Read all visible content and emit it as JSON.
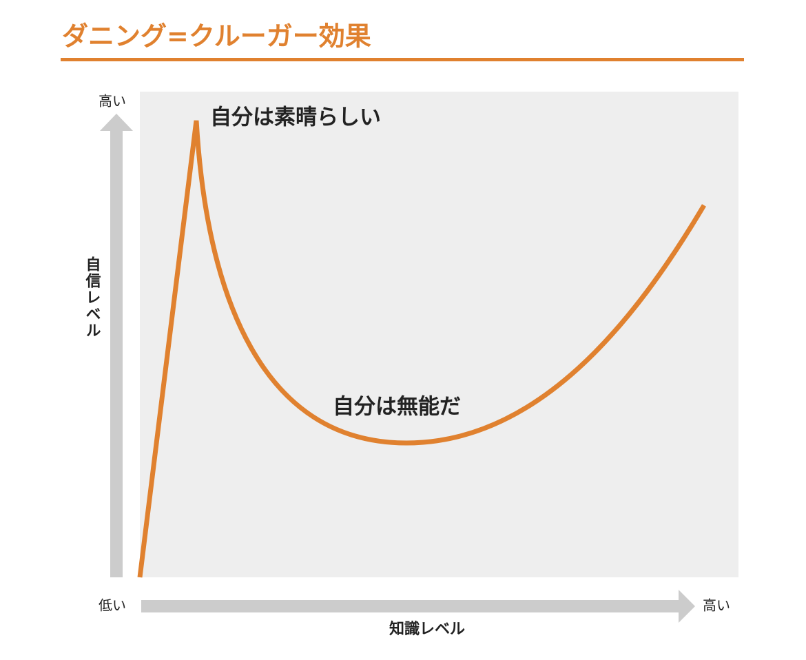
{
  "header": {
    "title": "ダニング=クルーガー効果"
  },
  "diagram": {
    "y_axis": {
      "label": "自信レベル",
      "high": "高い"
    },
    "x_axis": {
      "label": "知識レベル",
      "low": "低い",
      "high": "高い"
    },
    "annotations": [
      "自分は素晴らしい",
      "自分は無能だ"
    ]
  }
}
